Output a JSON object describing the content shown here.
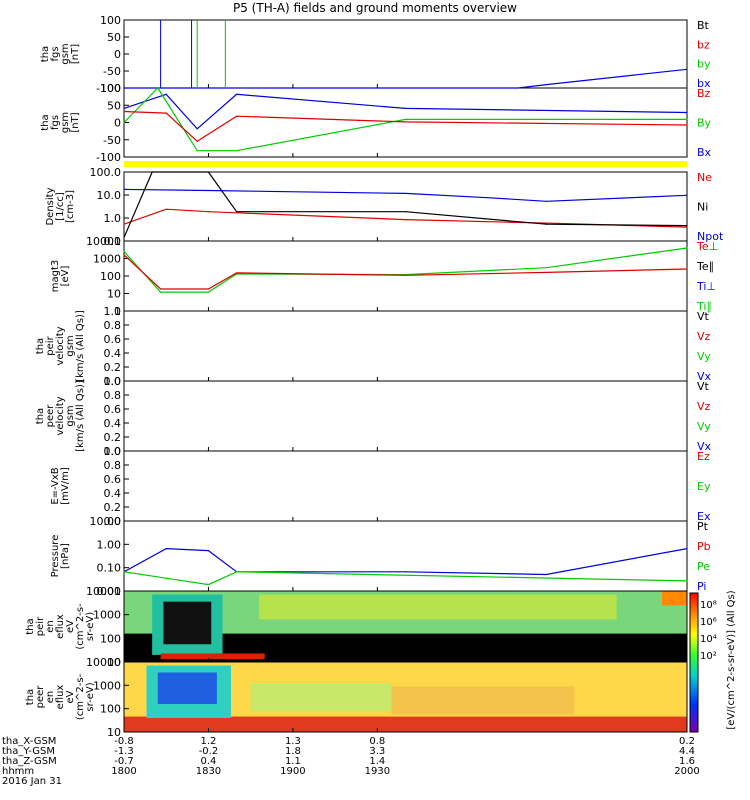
{
  "title": "P5 (TH-A) fields and ground moments overview",
  "date_label": "2016 Jan 31",
  "xaxis": {
    "rows": [
      {
        "label": "tha_X-GSM",
        "values": [
          "-0.8",
          "1.2",
          "1.3",
          "0.8",
          "0.2"
        ]
      },
      {
        "label": "tha_Y-GSM",
        "values": [
          "-1.3",
          "-0.2",
          "1.8",
          "3.3",
          "4.4"
        ]
      },
      {
        "label": "tha_Z-GSM",
        "values": [
          "-0.7",
          "0.4",
          "1.1",
          "1.4",
          "1.6"
        ]
      },
      {
        "label": "hhmm",
        "values": [
          "1800",
          "1830",
          "1900",
          "1930",
          "2000"
        ]
      }
    ]
  },
  "colors": {
    "black": "#000000",
    "red": "#dd0000",
    "green": "#00cc00",
    "blue": "#0000dd",
    "yellow": "#ffff00"
  },
  "panels": [
    {
      "id": "fgs1",
      "ylabel": [
        "tha",
        "fgs",
        "gsm",
        "[nT]"
      ],
      "yticks": [
        "100",
        "50",
        "0",
        "-50",
        "-100"
      ],
      "legend": [
        {
          "text": "Bt",
          "color": "black"
        },
        {
          "text": "bz",
          "color": "red"
        },
        {
          "text": "by",
          "color": "green"
        },
        {
          "text": "bx",
          "color": "blue"
        }
      ]
    },
    {
      "id": "fgs2",
      "ylabel": [
        "tha",
        "fgs",
        "gsm",
        "[nT]"
      ],
      "yticks": [
        "100",
        "50",
        "0",
        "-50",
        "-100"
      ],
      "legend": [
        {
          "text": "Bz",
          "color": "red"
        },
        {
          "text": "By",
          "color": "green"
        },
        {
          "text": "Bx",
          "color": "blue"
        }
      ]
    },
    {
      "id": "dens",
      "ylabel": [
        "Density",
        "[1/cc]",
        "[cm-3]"
      ],
      "yticks": [
        "100.0",
        "10.0",
        "1.0",
        "0.1"
      ],
      "legend": [
        {
          "text": "Ne",
          "color": "red"
        },
        {
          "text": "Ni",
          "color": "black"
        },
        {
          "text": "Npot",
          "color": "blue"
        }
      ]
    },
    {
      "id": "temp",
      "ylabel": [
        "magt3",
        "[eV]"
      ],
      "yticks": [
        "10000",
        "1000",
        "100",
        "10",
        "1"
      ],
      "legend": [
        {
          "text": "Te⊥",
          "color": "red"
        },
        {
          "text": "Te∥",
          "color": "black"
        },
        {
          "text": "Ti⊥",
          "color": "blue"
        },
        {
          "text": "Ti∥",
          "color": "green"
        }
      ]
    },
    {
      "id": "peir",
      "ylabel": [
        "tha",
        "peir",
        "velocity",
        "gsm",
        "[km/s (All Qs)]"
      ],
      "yticks": [
        "1.0",
        "0.8",
        "0.6",
        "0.4",
        "0.2",
        "0.0"
      ],
      "legend": [
        {
          "text": "Vt",
          "color": "black"
        },
        {
          "text": "Vz",
          "color": "red"
        },
        {
          "text": "Vy",
          "color": "green"
        },
        {
          "text": "Vx",
          "color": "blue"
        }
      ]
    },
    {
      "id": "peer",
      "ylabel": [
        "tha",
        "peer",
        "velocity",
        "gsm",
        "[km/s (All Qs)]"
      ],
      "yticks": [
        "1.0",
        "0.8",
        "0.6",
        "0.4",
        "0.2",
        "0.0"
      ],
      "legend": [
        {
          "text": "Vt",
          "color": "black"
        },
        {
          "text": "Vz",
          "color": "red"
        },
        {
          "text": "Vy",
          "color": "green"
        },
        {
          "text": "Vx",
          "color": "blue"
        }
      ]
    },
    {
      "id": "efield",
      "ylabel": [
        "E=-VxB",
        "[mV/m]"
      ],
      "yticks": [
        "1.0",
        "0.8",
        "0.6",
        "0.4",
        "0.2",
        "0.0"
      ],
      "legend": [
        {
          "text": "Ez",
          "color": "red"
        },
        {
          "text": "Ey",
          "color": "green"
        },
        {
          "text": "Ex",
          "color": "blue"
        }
      ]
    },
    {
      "id": "press",
      "ylabel": [
        "Pressure",
        "[nPa]"
      ],
      "yticks": [
        "10.00",
        "1.00",
        "0.10",
        "0.01"
      ],
      "legend": [
        {
          "text": "Pt",
          "color": "black"
        },
        {
          "text": "Pb",
          "color": "red"
        },
        {
          "text": "Pe",
          "color": "green"
        },
        {
          "text": "Pi",
          "color": "blue"
        }
      ]
    },
    {
      "id": "ispec",
      "ylabel": [
        "tha",
        "peir",
        "en",
        "eflux",
        "eV",
        "(cm^2-s-",
        "sr-eV)"
      ],
      "yticks": [
        "10000",
        "1000",
        "100",
        "10"
      ],
      "legend": []
    },
    {
      "id": "espec",
      "ylabel": [
        "tha",
        "peer",
        "en",
        "eflux",
        "eV",
        "(cm^2-s-",
        "sr-eV)"
      ],
      "yticks": [
        "10000",
        "1000",
        "100",
        "10"
      ],
      "legend": []
    }
  ],
  "colorbar": {
    "label": "[eV/(cm^2-s-sr-eV)] (All Qs)",
    "ticks": [
      "10⁸",
      "10⁶",
      "10⁴",
      "10²"
    ]
  },
  "chart_data": [
    {
      "type": "line",
      "panel": "fgs1",
      "series": [
        {
          "name": "bx",
          "color": "blue",
          "x": [
            1800,
            1850,
            1900,
            1940,
            1950,
            2000
          ],
          "y": [
            -100,
            -100,
            -100,
            -100,
            -90,
            -45
          ]
        }
      ],
      "ylim": [
        -100,
        100
      ]
    },
    {
      "type": "line",
      "panel": "fgs2",
      "series": [
        {
          "name": "Bx",
          "color": "blue",
          "x": [
            1800,
            1815,
            1826,
            1840,
            1900,
            2000
          ],
          "y": [
            35,
            80,
            -30,
            80,
            35,
            22
          ]
        },
        {
          "name": "By",
          "color": "green",
          "x": [
            1800,
            1812,
            1826,
            1840,
            1900,
            2000
          ],
          "y": [
            -10,
            100,
            -100,
            -100,
            0,
            0
          ]
        },
        {
          "name": "Bz",
          "color": "red",
          "x": [
            1800,
            1815,
            1826,
            1840,
            1900,
            2000
          ],
          "y": [
            25,
            20,
            -70,
            10,
            -8,
            -18
          ]
        }
      ],
      "ylim": [
        -120,
        100
      ]
    },
    {
      "type": "line",
      "panel": "dens",
      "series": [
        {
          "name": "Npot",
          "color": "blue",
          "x": [
            1800,
            1830,
            1900,
            1930,
            1950,
            2000
          ],
          "y": [
            40,
            35,
            25,
            15,
            10,
            20
          ]
        },
        {
          "name": "Ne",
          "color": "red",
          "x": [
            1800,
            1815,
            1830,
            1900,
            1950,
            2000
          ],
          "y": [
            0.7,
            4,
            3,
            1.2,
            0.8,
            0.5
          ]
        },
        {
          "name": "Ni",
          "color": "black",
          "x": [
            1800,
            1810,
            1830,
            1840,
            1900,
            1950,
            2000
          ],
          "y": [
            0.15,
            300,
            300,
            3,
            3,
            0.7,
            0.6
          ]
        }
      ],
      "ylim": [
        0.1,
        300
      ]
    },
    {
      "type": "line",
      "panel": "temp",
      "series": [
        {
          "name": "Ti∥",
          "color": "green",
          "x": [
            1800,
            1813,
            1830,
            1840,
            1900,
            1950,
            2000
          ],
          "y": [
            2500,
            12,
            12,
            130,
            120,
            300,
            4000
          ]
        },
        {
          "name": "Te⊥",
          "color": "red",
          "x": [
            1800,
            1813,
            1830,
            1840,
            1900,
            1950,
            2000
          ],
          "y": [
            1600,
            18,
            18,
            150,
            110,
            160,
            250
          ]
        }
      ],
      "ylim": [
        1,
        10000
      ]
    },
    {
      "type": "line",
      "panel": "press",
      "series": [
        {
          "name": "Pi",
          "color": "blue",
          "x": [
            1800,
            1815,
            1830,
            1840,
            1900,
            1950,
            2000
          ],
          "y": [
            0.04,
            0.5,
            0.4,
            0.04,
            0.04,
            0.03,
            0.5
          ]
        },
        {
          "name": "Pe",
          "color": "green",
          "x": [
            1800,
            1815,
            1830,
            1840,
            2000
          ],
          "y": [
            0.04,
            0.02,
            0.01,
            0.04,
            0.015
          ]
        }
      ],
      "ylim": [
        0.005,
        10
      ]
    }
  ]
}
